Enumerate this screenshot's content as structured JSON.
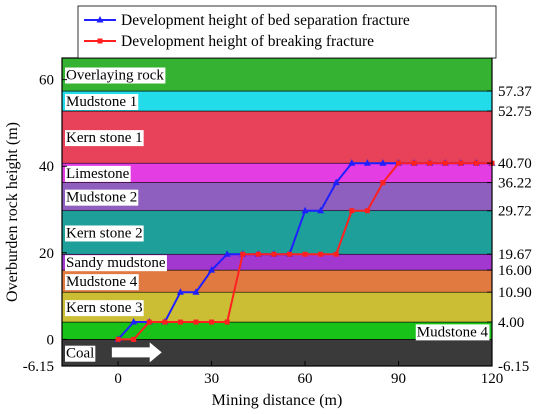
{
  "chart_data": {
    "type": "line",
    "xlabel": "Mining distance (m)",
    "ylabel": "Overburden rock height (m)",
    "xlim": [
      -18,
      120
    ],
    "ylim": [
      -6.15,
      65
    ],
    "xticks": [
      0,
      30,
      60,
      90,
      120
    ],
    "yticks": [
      0,
      20,
      40,
      60
    ],
    "right_tick_labels": [
      "57.37",
      "52.75",
      "40.70",
      "36.22",
      "29.72",
      "19.67",
      "16.00",
      "10.90",
      "4.00",
      "-6.15"
    ],
    "legend_position": "top",
    "layers": [
      {
        "name": "Coal",
        "bottom": -6.15,
        "top": 0,
        "color": "#3a3a3a",
        "label": "Coal",
        "label_side": "left"
      },
      {
        "name": "Mudstone 4",
        "bottom": 0,
        "top": 4.0,
        "color": "#19c219",
        "label": "Mudstone 4",
        "label_side": "right"
      },
      {
        "name": "Kern stone 3",
        "bottom": 4.0,
        "top": 10.9,
        "color": "#cbbe35",
        "label": "Kern stone 3",
        "label_side": "left"
      },
      {
        "name": "Mudstone 4 upper",
        "bottom": 10.9,
        "top": 16.0,
        "color": "#e07a40",
        "label": "Mudstone 4",
        "label_side": "left"
      },
      {
        "name": "Sandy mudstone",
        "bottom": 16.0,
        "top": 19.67,
        "color": "#a238cf",
        "label": "Sandy mudstone",
        "label_side": "left"
      },
      {
        "name": "Kern stone 2",
        "bottom": 19.67,
        "top": 29.72,
        "color": "#1f9f9a",
        "label": "Kern stone 2",
        "label_side": "left"
      },
      {
        "name": "Mudstone 2",
        "bottom": 29.72,
        "top": 36.22,
        "color": "#8f5fbf",
        "label": "Mudstone 2",
        "label_side": "left"
      },
      {
        "name": "Limestone",
        "bottom": 36.22,
        "top": 40.7,
        "color": "#e43de4",
        "label": "Limestone",
        "label_side": "left"
      },
      {
        "name": "Kern stone 1",
        "bottom": 40.7,
        "top": 52.75,
        "color": "#e8425a",
        "label": "Kern stone 1",
        "label_side": "left"
      },
      {
        "name": "Mudstone 1",
        "bottom": 52.75,
        "top": 57.37,
        "color": "#22dcea",
        "label": "Mudstone 1",
        "label_side": "left"
      },
      {
        "name": "Overlaying rock",
        "bottom": 57.37,
        "top": 65,
        "color": "#36b232",
        "label": "Overlaying rock",
        "label_side": "left"
      }
    ],
    "arrow": {
      "x_start": -2,
      "x_end": 14,
      "y": -3.0,
      "color": "#ffffff"
    },
    "series": [
      {
        "name": "Development height of bed separation fracture",
        "color": "#1f1fff",
        "marker": "triangle",
        "x": [
          0,
          5,
          10,
          15,
          20,
          25,
          30,
          35,
          40,
          45,
          50,
          55,
          60,
          65,
          70,
          75,
          80,
          85,
          90,
          95,
          100,
          105,
          110,
          115,
          120
        ],
        "y": [
          0,
          4,
          4,
          4,
          10.9,
          10.9,
          16,
          19.67,
          19.67,
          19.67,
          19.67,
          19.67,
          29.72,
          29.72,
          36.22,
          40.7,
          40.7,
          40.7,
          40.7,
          40.7,
          40.7,
          40.7,
          40.7,
          40.7,
          40.7
        ]
      },
      {
        "name": "Development height of breaking fracture",
        "color": "#ff2020",
        "marker": "square",
        "x": [
          0,
          5,
          10,
          15,
          20,
          25,
          30,
          35,
          40,
          45,
          50,
          55,
          60,
          65,
          70,
          75,
          80,
          85,
          90,
          95,
          100,
          105,
          110,
          115,
          120
        ],
        "y": [
          0,
          0,
          4,
          4,
          4,
          4,
          4,
          4,
          19.67,
          19.67,
          19.67,
          19.67,
          19.67,
          19.67,
          19.67,
          29.72,
          29.72,
          36.22,
          40.7,
          40.7,
          40.7,
          40.7,
          40.7,
          40.7,
          40.7
        ]
      }
    ]
  }
}
